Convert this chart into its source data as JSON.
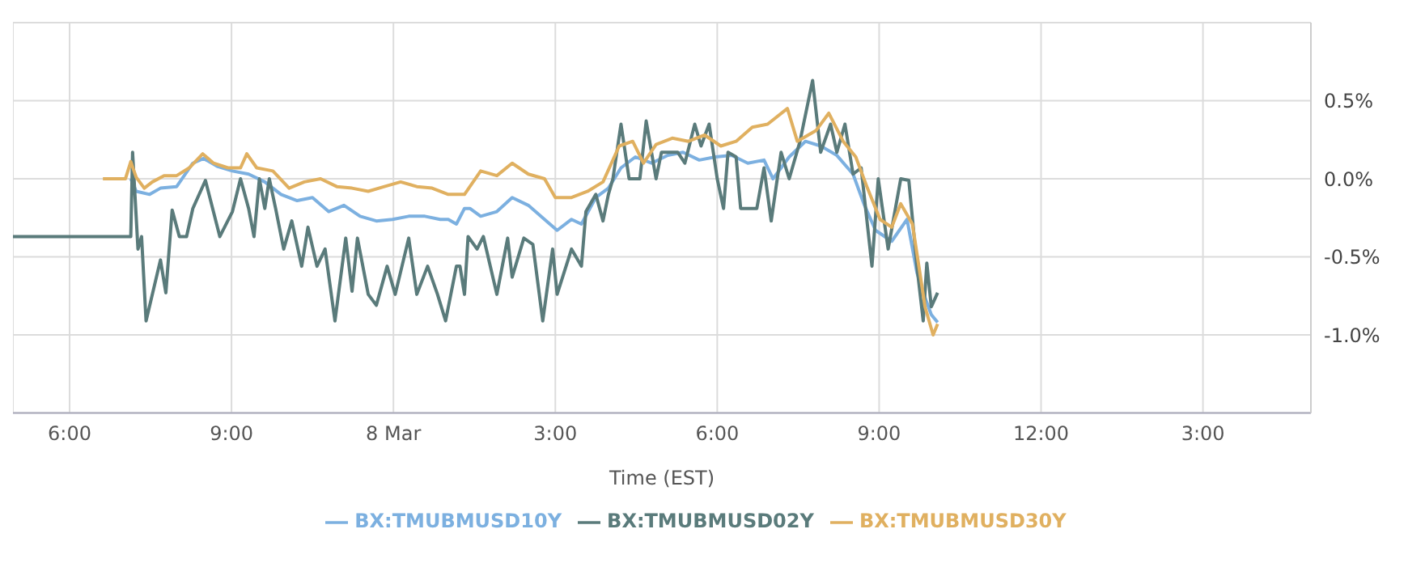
{
  "chart_data": {
    "type": "line",
    "xlabel": "Time (EST)",
    "xlim": [
      "--03-07T16:57",
      "--03-08T17:00"
    ],
    "xticks": [
      {
        "value": "--03-07T18:00",
        "label": "6:00"
      },
      {
        "value": "--03-07T21:00",
        "label": "9:00"
      },
      {
        "value": "--03-08T00:00",
        "label": "8 Mar"
      },
      {
        "value": "--03-08T03:00",
        "label": "3:00"
      },
      {
        "value": "--03-08T06:00",
        "label": "6:00"
      },
      {
        "value": "--03-08T09:00",
        "label": "9:00"
      },
      {
        "value": "--03-08T12:00",
        "label": "12:00"
      },
      {
        "value": "--03-08T15:00",
        "label": "3:00"
      }
    ],
    "ylim": [
      -1.5,
      1.0
    ],
    "yticks": [
      {
        "value": 0.5,
        "label": "0.5%"
      },
      {
        "value": 0,
        "label": "0.0%"
      },
      {
        "value": -0.5,
        "label": "-0.5%"
      },
      {
        "value": -1,
        "label": "-1.0%"
      }
    ],
    "grid": true,
    "legend": "bottom",
    "marker": "none",
    "line_style": "solid",
    "series": [
      {
        "name": "BX:TMUBMUSD10Y",
        "color": "#7cb0e0",
        "x": [
          "--03-07T19:08",
          "--03-07T19:14",
          "--03-07T19:29",
          "--03-07T19:41",
          "--03-07T19:59",
          "--03-07T20:17",
          "--03-07T20:29",
          "--03-07T20:44",
          "--03-07T21:01",
          "--03-07T21:19",
          "--03-07T21:37",
          "--03-07T21:55",
          "--03-07T22:13",
          "--03-07T22:30",
          "--03-07T22:48",
          "--03-07T23:05",
          "--03-07T23:23",
          "--03-07T23:41",
          "--03-07T23:59",
          "--03-08T00:17",
          "--03-08T00:35",
          "--03-08T00:52",
          "--03-08T01:01",
          "--03-08T01:10",
          "--03-08T01:19",
          "--03-08T01:25",
          "--03-08T01:37",
          "--03-08T01:55",
          "--03-08T02:12",
          "--03-08T02:30",
          "--03-08T02:48",
          "--03-08T03:02",
          "--03-08T03:18",
          "--03-08T03:29",
          "--03-08T03:45",
          "--03-08T03:59",
          "--03-08T04:13",
          "--03-08T04:29",
          "--03-08T04:47",
          "--03-08T05:05",
          "--03-08T05:22",
          "--03-08T05:40",
          "--03-08T05:58",
          "--03-08T06:16",
          "--03-08T06:34",
          "--03-08T06:52",
          "--03-08T07:02",
          "--03-08T07:20",
          "--03-08T07:38",
          "--03-08T07:55",
          "--03-08T08:13",
          "--03-08T08:31",
          "--03-08T08:43",
          "--03-08T08:56",
          "--03-08T09:14",
          "--03-08T09:31",
          "--03-08T09:42",
          "--03-08T09:49",
          "--03-08T09:58",
          "--03-08T10:05"
        ],
        "values": [
          0.0,
          -0.08,
          -0.1,
          -0.06,
          -0.05,
          0.1,
          0.13,
          0.08,
          0.05,
          0.03,
          -0.02,
          -0.1,
          -0.14,
          -0.12,
          -0.21,
          -0.17,
          -0.24,
          -0.27,
          -0.26,
          -0.24,
          -0.24,
          -0.26,
          -0.26,
          -0.29,
          -0.19,
          -0.19,
          -0.24,
          -0.21,
          -0.12,
          -0.17,
          -0.26,
          -0.33,
          -0.26,
          -0.29,
          -0.12,
          -0.06,
          0.07,
          0.14,
          0.1,
          0.15,
          0.17,
          0.12,
          0.14,
          0.15,
          0.1,
          0.12,
          0.0,
          0.14,
          0.24,
          0.21,
          0.15,
          0.03,
          -0.16,
          -0.33,
          -0.4,
          -0.26,
          -0.6,
          -0.73,
          -0.87,
          -0.92
        ]
      },
      {
        "name": "BX:TMUBMUSD02Y",
        "color": "#5a7b7b",
        "x": [
          "--03-07T16:57",
          "--03-07T19:08",
          "--03-07T19:10",
          "--03-07T19:16",
          "--03-07T19:20",
          "--03-07T19:25",
          "--03-07T19:41",
          "--03-07T19:47",
          "--03-07T19:54",
          "--03-07T20:02",
          "--03-07T20:10",
          "--03-07T20:17",
          "--03-07T20:31",
          "--03-07T20:47",
          "--03-07T21:01",
          "--03-07T21:10",
          "--03-07T21:19",
          "--03-07T21:25",
          "--03-07T21:31",
          "--03-07T21:37",
          "--03-07T21:42",
          "--03-07T21:49",
          "--03-07T21:58",
          "--03-07T22:07",
          "--03-07T22:18",
          "--03-07T22:25",
          "--03-07T22:35",
          "--03-07T22:44",
          "--03-07T22:55",
          "--03-07T23:07",
          "--03-07T23:14",
          "--03-07T23:20",
          "--03-07T23:32",
          "--03-07T23:41",
          "--03-07T23:53",
          "--03-08T00:02",
          "--03-08T00:17",
          "--03-08T00:26",
          "--03-08T00:38",
          "--03-08T00:49",
          "--03-08T00:58",
          "--03-08T01:10",
          "--03-08T01:14",
          "--03-08T01:19",
          "--03-08T01:23",
          "--03-08T01:33",
          "--03-08T01:40",
          "--03-08T01:55",
          "--03-08T02:07",
          "--03-08T02:12",
          "--03-08T02:25",
          "--03-08T02:35",
          "--03-08T02:46",
          "--03-08T02:57",
          "--03-08T03:02",
          "--03-08T03:18",
          "--03-08T03:29",
          "--03-08T03:34",
          "--03-08T03:45",
          "--03-08T03:53",
          "--03-08T03:59",
          "--03-08T04:04",
          "--03-08T04:13",
          "--03-08T04:22",
          "--03-08T04:34",
          "--03-08T04:41",
          "--03-08T04:52",
          "--03-08T04:58",
          "--03-08T05:16",
          "--03-08T05:24",
          "--03-08T05:35",
          "--03-08T05:42",
          "--03-08T05:51",
          "--03-08T06:00",
          "--03-08T06:07",
          "--03-08T06:12",
          "--03-08T06:21",
          "--03-08T06:26",
          "--03-08T06:44",
          "--03-08T06:52",
          "--03-08T07:00",
          "--03-08T07:11",
          "--03-08T07:20",
          "--03-08T07:32",
          "--03-08T07:46",
          "--03-08T07:55",
          "--03-08T08:06",
          "--03-08T08:13",
          "--03-08T08:22",
          "--03-08T08:31",
          "--03-08T08:40",
          "--03-08T08:52",
          "--03-08T08:59",
          "--03-08T09:10",
          "--03-08T09:24",
          "--03-08T09:33",
          "--03-08T09:42",
          "--03-08T09:49",
          "--03-08T09:53",
          "--03-08T09:58",
          "--03-08T10:05"
        ],
        "values": [
          -0.37,
          -0.37,
          0.17,
          -0.45,
          -0.37,
          -0.91,
          -0.52,
          -0.73,
          -0.2,
          -0.37,
          -0.37,
          -0.19,
          -0.01,
          -0.37,
          -0.21,
          0.0,
          -0.19,
          -0.37,
          0.0,
          -0.19,
          0.0,
          -0.19,
          -0.45,
          -0.27,
          -0.56,
          -0.31,
          -0.56,
          -0.45,
          -0.91,
          -0.38,
          -0.72,
          -0.38,
          -0.74,
          -0.81,
          -0.56,
          -0.74,
          -0.38,
          -0.74,
          -0.56,
          -0.74,
          -0.91,
          -0.56,
          -0.56,
          -0.74,
          -0.37,
          -0.45,
          -0.37,
          -0.74,
          -0.38,
          -0.63,
          -0.38,
          -0.42,
          -0.91,
          -0.45,
          -0.74,
          -0.45,
          -0.56,
          -0.21,
          -0.1,
          -0.27,
          -0.1,
          0.0,
          0.35,
          0.0,
          0.0,
          0.37,
          0.0,
          0.17,
          0.17,
          0.1,
          0.35,
          0.21,
          0.35,
          0.0,
          -0.19,
          0.17,
          0.14,
          -0.19,
          -0.19,
          0.07,
          -0.27,
          0.17,
          0.0,
          0.24,
          0.63,
          0.17,
          0.35,
          0.17,
          0.35,
          0.03,
          0.07,
          -0.56,
          0.0,
          -0.45,
          0.0,
          -0.01,
          -0.56,
          -0.91,
          -0.54,
          -0.82,
          -0.73
        ]
      },
      {
        "name": "BX:TMUBMUSD30Y",
        "color": "#e0b060",
        "x": [
          "--03-07T18:37",
          "--03-07T19:02",
          "--03-07T19:08",
          "--03-07T19:14",
          "--03-07T19:23",
          "--03-07T19:32",
          "--03-07T19:45",
          "--03-07T19:59",
          "--03-07T20:13",
          "--03-07T20:28",
          "--03-07T20:40",
          "--03-07T20:56",
          "--03-07T21:10",
          "--03-07T21:17",
          "--03-07T21:28",
          "--03-07T21:46",
          "--03-07T22:04",
          "--03-07T22:21",
          "--03-07T22:39",
          "--03-07T22:57",
          "--03-07T23:14",
          "--03-07T23:32",
          "--03-07T23:50",
          "--03-08T00:08",
          "--03-08T00:26",
          "--03-08T00:43",
          "--03-08T01:01",
          "--03-08T01:19",
          "--03-08T01:37",
          "--03-08T01:55",
          "--03-08T02:12",
          "--03-08T02:30",
          "--03-08T02:48",
          "--03-08T03:00",
          "--03-08T03:18",
          "--03-08T03:36",
          "--03-08T03:53",
          "--03-08T04:11",
          "--03-08T04:26",
          "--03-08T04:38",
          "--03-08T04:52",
          "--03-08T05:10",
          "--03-08T05:28",
          "--03-08T05:46",
          "--03-08T06:04",
          "--03-08T06:21",
          "--03-08T06:39",
          "--03-08T06:56",
          "--03-08T07:18",
          "--03-08T07:29",
          "--03-08T07:50",
          "--03-08T08:04",
          "--03-08T08:20",
          "--03-08T08:34",
          "--03-08T08:47",
          "--03-08T09:01",
          "--03-08T09:14",
          "--03-08T09:24",
          "--03-08T09:37",
          "--03-08T09:46",
          "--03-08T09:51",
          "--03-08T10:00",
          "--03-08T10:05"
        ],
        "values": [
          0.0,
          0.0,
          0.11,
          0.01,
          -0.06,
          -0.02,
          0.02,
          0.02,
          0.07,
          0.16,
          0.1,
          0.07,
          0.07,
          0.16,
          0.07,
          0.05,
          -0.06,
          -0.02,
          0.0,
          -0.05,
          -0.06,
          -0.08,
          -0.05,
          -0.02,
          -0.05,
          -0.06,
          -0.1,
          -0.1,
          0.05,
          0.02,
          0.1,
          0.03,
          0.0,
          -0.12,
          -0.12,
          -0.08,
          -0.02,
          0.21,
          0.24,
          0.1,
          0.22,
          0.26,
          0.24,
          0.28,
          0.21,
          0.24,
          0.33,
          0.35,
          0.45,
          0.24,
          0.31,
          0.42,
          0.24,
          0.14,
          -0.06,
          -0.26,
          -0.31,
          -0.16,
          -0.29,
          -0.63,
          -0.82,
          -1.0,
          -0.93
        ]
      }
    ]
  }
}
